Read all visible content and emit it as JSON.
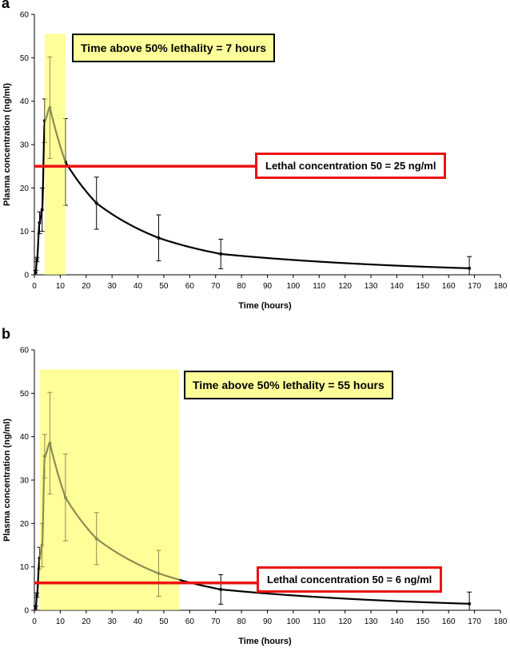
{
  "chart_data": [
    {
      "type": "line",
      "panel_label": "a",
      "xlabel": "Time (hours)",
      "ylabel": "Plasma concentration (ng/ml)",
      "xlim": [
        0,
        180
      ],
      "ylim": [
        0,
        60
      ],
      "xticks": [
        0,
        10,
        20,
        30,
        40,
        50,
        60,
        70,
        80,
        90,
        100,
        110,
        120,
        130,
        140,
        150,
        160,
        170,
        180
      ],
      "yticks": [
        0,
        10,
        20,
        30,
        40,
        50,
        60
      ],
      "grid": false,
      "series": [
        {
          "color": "#000000",
          "x": [
            0.5,
            1,
            2,
            3,
            4,
            6,
            12,
            24,
            48,
            72,
            168
          ],
          "y": [
            0.5,
            3.5,
            12,
            15,
            35.5,
            38.5,
            26,
            16.5,
            8.5,
            4.8,
            1.5
          ],
          "err": [
            0.5,
            0.5,
            2.5,
            5,
            5,
            11.7,
            10,
            6,
            5.3,
            3.4,
            2.7
          ]
        }
      ],
      "lc50": 25,
      "shaded_interval": [
        4,
        12
      ],
      "lethality_text": "Time above 50% lethality = 7 hours",
      "lc50_text": "Lethal concentration 50 = 25 ng/ml",
      "colors": {
        "shade": "#ffff99",
        "lc50_line": "#ee1111",
        "curve": "#000000",
        "curve_in_shade": "#666600"
      }
    },
    {
      "type": "line",
      "panel_label": "b",
      "xlabel": "Time (hours)",
      "ylabel": "Plasma concentration (ng/ml)",
      "xlim": [
        0,
        180
      ],
      "ylim": [
        0,
        60
      ],
      "xticks": [
        0,
        10,
        20,
        30,
        40,
        50,
        60,
        70,
        80,
        90,
        100,
        110,
        120,
        130,
        140,
        150,
        160,
        170,
        180
      ],
      "yticks": [
        0,
        10,
        20,
        30,
        40,
        50,
        60
      ],
      "grid": false,
      "series": [
        {
          "color": "#000000",
          "x": [
            0.5,
            1,
            2,
            3,
            4,
            6,
            12,
            24,
            48,
            72,
            168
          ],
          "y": [
            0.5,
            3.5,
            12,
            15,
            35.5,
            38.5,
            26,
            16.5,
            8.5,
            4.8,
            1.5
          ],
          "err": [
            0.5,
            0.5,
            2.5,
            5,
            5,
            11.7,
            10,
            6,
            5.3,
            3.4,
            2.7
          ]
        }
      ],
      "lc50": 6.3,
      "shaded_interval": [
        2,
        56
      ],
      "lethality_text": "Time above 50% lethality  = 55 hours",
      "lc50_text": "Lethal concentration 50 = 6 ng/ml",
      "colors": {
        "shade": "#ffff99",
        "lc50_line": "#ee1111",
        "curve": "#000000",
        "curve_in_shade": "#666600"
      }
    }
  ]
}
